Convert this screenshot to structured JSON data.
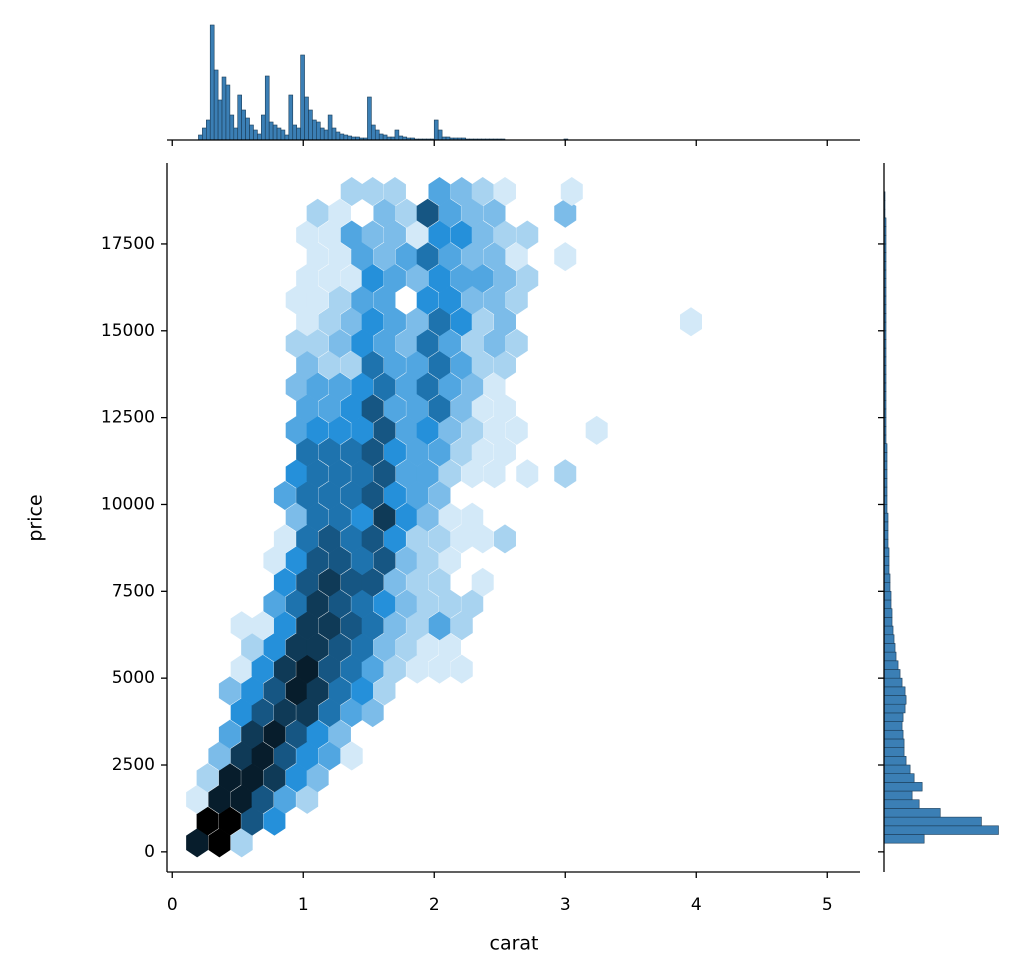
{
  "chart_data": [
    {
      "type": "hexbin",
      "x_label": "carat",
      "y_label": "price",
      "color": "#1f77b4",
      "xlim": [
        -0.04,
        5.25
      ],
      "ylim": [
        -580,
        19830
      ],
      "xticks": [
        0,
        1,
        2,
        3,
        4,
        5
      ],
      "yticks": [
        0,
        2500,
        5000,
        7500,
        10000,
        12500,
        15000,
        17500
      ],
      "x": [
        0.19,
        0.36,
        0.53,
        0.27,
        0.44,
        0.61,
        0.78,
        0.19,
        0.36,
        0.53,
        0.69,
        0.86,
        1.03,
        0.27,
        0.44,
        0.61,
        0.78,
        0.95,
        1.11,
        0.36,
        0.53,
        0.69,
        0.86,
        1.03,
        1.2,
        1.37,
        0.44,
        0.61,
        0.78,
        0.95,
        1.11,
        1.28,
        0.53,
        0.69,
        0.86,
        1.03,
        1.2,
        1.37,
        1.53,
        0.44,
        0.61,
        0.78,
        0.95,
        1.11,
        1.28,
        1.45,
        1.62,
        0.53,
        0.69,
        0.86,
        1.03,
        1.2,
        1.37,
        1.53,
        1.7,
        1.87,
        2.04,
        2.21,
        0.61,
        0.78,
        0.95,
        1.11,
        1.28,
        1.45,
        1.62,
        1.79,
        1.95,
        2.12,
        0.53,
        0.69,
        0.86,
        1.03,
        1.2,
        1.37,
        1.53,
        1.7,
        1.87,
        2.04,
        2.21,
        0.78,
        0.95,
        1.11,
        1.28,
        1.45,
        1.62,
        1.79,
        1.95,
        2.12,
        2.29,
        0.86,
        1.03,
        1.2,
        1.37,
        1.53,
        1.7,
        1.87,
        2.04,
        2.37,
        0.78,
        0.95,
        1.11,
        1.28,
        1.45,
        1.62,
        1.79,
        1.95,
        2.12,
        0.86,
        1.03,
        1.2,
        1.37,
        1.53,
        1.7,
        1.87,
        2.04,
        2.21,
        2.37,
        2.54,
        0.95,
        1.11,
        1.28,
        1.45,
        1.62,
        1.79,
        1.95,
        2.12,
        2.29,
        0.86,
        1.03,
        1.2,
        1.37,
        1.53,
        1.7,
        1.87,
        2.04,
        0.95,
        1.11,
        1.28,
        1.45,
        1.62,
        1.79,
        1.95,
        2.12,
        2.29,
        2.46,
        2.71,
        3.0,
        1.03,
        1.2,
        1.37,
        1.53,
        1.7,
        1.87,
        2.04,
        2.21,
        2.37,
        2.54,
        0.95,
        1.11,
        1.28,
        1.45,
        1.62,
        1.79,
        1.95,
        2.12,
        2.29,
        2.46,
        2.63,
        3.24,
        1.03,
        1.2,
        1.37,
        1.53,
        1.7,
        1.87,
        2.04,
        2.21,
        2.37,
        2.54,
        0.95,
        1.11,
        1.28,
        1.45,
        1.62,
        1.79,
        1.95,
        2.12,
        2.29,
        2.46,
        1.03,
        1.2,
        1.37,
        1.53,
        1.7,
        1.87,
        2.04,
        2.21,
        2.37,
        2.54,
        0.95,
        1.11,
        1.28,
        1.45,
        1.62,
        1.79,
        1.95,
        2.12,
        2.29,
        2.46,
        2.63,
        1.03,
        1.2,
        1.37,
        1.53,
        1.7,
        1.87,
        2.04,
        2.21,
        2.37,
        2.54,
        3.96,
        0.95,
        1.11,
        1.28,
        1.45,
        1.62,
        1.95,
        2.12,
        2.29,
        2.46,
        2.63,
        1.03,
        1.2,
        1.37,
        1.53,
        1.7,
        1.87,
        2.04,
        2.21,
        2.37,
        2.54,
        2.71,
        1.11,
        1.28,
        1.45,
        1.62,
        1.79,
        1.95,
        2.12,
        2.29,
        2.46,
        2.63,
        3.0,
        1.03,
        1.2,
        1.37,
        1.53,
        1.7,
        1.87,
        2.04,
        2.21,
        2.37,
        2.54,
        2.71,
        1.11,
        1.28,
        1.62,
        1.79,
        1.95,
        2.12,
        2.29,
        2.46,
        3.0,
        1.37,
        1.53,
        1.7,
        2.04,
        2.21,
        2.37,
        2.54,
        3.05
      ],
      "y": [
        259,
        259,
        259,
        884,
        884,
        884,
        884,
        1509,
        1509,
        1509,
        1509,
        1509,
        1509,
        2134,
        2134,
        2134,
        2134,
        2134,
        2134,
        2759,
        2759,
        2759,
        2759,
        2759,
        2759,
        2759,
        3384,
        3384,
        3384,
        3384,
        3384,
        3384,
        4009,
        4009,
        4009,
        4009,
        4009,
        4009,
        4009,
        4634,
        4634,
        4634,
        4634,
        4634,
        4634,
        4634,
        4634,
        5259,
        5259,
        5259,
        5259,
        5259,
        5259,
        5259,
        5259,
        5259,
        5259,
        5259,
        5884,
        5884,
        5884,
        5884,
        5884,
        5884,
        5884,
        5884,
        5884,
        5884,
        6509,
        6509,
        6509,
        6509,
        6509,
        6509,
        6509,
        6509,
        6509,
        6509,
        6509,
        7134,
        7134,
        7134,
        7134,
        7134,
        7134,
        7134,
        7134,
        7134,
        7134,
        7759,
        7759,
        7759,
        7759,
        7759,
        7759,
        7759,
        7759,
        7759,
        8384,
        8384,
        8384,
        8384,
        8384,
        8384,
        8384,
        8384,
        8384,
        9009,
        9009,
        9009,
        9009,
        9009,
        9009,
        9009,
        9009,
        9009,
        9009,
        9009,
        9634,
        9634,
        9634,
        9634,
        9634,
        9634,
        9634,
        9634,
        9634,
        10259,
        10259,
        10259,
        10259,
        10259,
        10259,
        10259,
        10259,
        10884,
        10884,
        10884,
        10884,
        10884,
        10884,
        10884,
        10884,
        10884,
        10884,
        10884,
        10884,
        11509,
        11509,
        11509,
        11509,
        11509,
        11509,
        11509,
        11509,
        11509,
        11509,
        12134,
        12134,
        12134,
        12134,
        12134,
        12134,
        12134,
        12134,
        12134,
        12134,
        12134,
        12134,
        12759,
        12759,
        12759,
        12759,
        12759,
        12759,
        12759,
        12759,
        12759,
        12759,
        13384,
        13384,
        13384,
        13384,
        13384,
        13384,
        13384,
        13384,
        13384,
        13384,
        14009,
        14009,
        14009,
        14009,
        14009,
        14009,
        14009,
        14009,
        14009,
        14009,
        14634,
        14634,
        14634,
        14634,
        14634,
        14634,
        14634,
        14634,
        14634,
        14634,
        14634,
        15259,
        15259,
        15259,
        15259,
        15259,
        15259,
        15259,
        15259,
        15259,
        15259,
        15259,
        15884,
        15884,
        15884,
        15884,
        15884,
        15884,
        15884,
        15884,
        15884,
        15884,
        16509,
        16509,
        16509,
        16509,
        16509,
        16509,
        16509,
        16509,
        16509,
        16509,
        16509,
        17134,
        17134,
        17134,
        17134,
        17134,
        17134,
        17134,
        17134,
        17134,
        17134,
        17134,
        17759,
        17759,
        17759,
        17759,
        17759,
        17759,
        17759,
        17759,
        17759,
        17759,
        17759,
        18384,
        18384,
        18384,
        18384,
        18384,
        18384,
        18384,
        18384,
        18384,
        19009,
        19009,
        19009,
        19009,
        19009,
        19009,
        19009,
        19009
      ],
      "values": [
        2700,
        3000,
        600,
        3000,
        3000,
        2100,
        1500,
        300,
        2700,
        2700,
        2100,
        1200,
        600,
        600,
        2700,
        2700,
        2400,
        1500,
        900,
        900,
        2400,
        2700,
        2100,
        1500,
        1200,
        300,
        1200,
        2400,
        2700,
        2100,
        1500,
        900,
        1500,
        2100,
        2400,
        2400,
        1800,
        1200,
        900,
        900,
        1500,
        2100,
        2700,
        2400,
        1800,
        1500,
        600,
        300,
        1500,
        2400,
        2700,
        2100,
        1800,
        1200,
        600,
        300,
        300,
        300,
        600,
        1500,
        2400,
        2400,
        2100,
        1800,
        900,
        600,
        300,
        300,
        300,
        300,
        1500,
        2400,
        2400,
        2100,
        1800,
        900,
        600,
        1200,
        600,
        1200,
        1800,
        2400,
        2100,
        1800,
        1500,
        900,
        600,
        600,
        600,
        1500,
        2100,
        2400,
        2100,
        2100,
        900,
        600,
        600,
        300,
        300,
        1500,
        2100,
        2100,
        1800,
        2100,
        900,
        600,
        300,
        300,
        1800,
        2100,
        1800,
        2100,
        1500,
        600,
        600,
        300,
        300,
        600,
        900,
        1800,
        1800,
        1500,
        2400,
        1500,
        900,
        300,
        300,
        1200,
        1800,
        1800,
        1800,
        2100,
        1500,
        1200,
        900,
        1500,
        1800,
        1800,
        1800,
        2100,
        1200,
        1200,
        600,
        300,
        300,
        300,
        600,
        1800,
        1800,
        1800,
        2100,
        1500,
        1200,
        1200,
        600,
        300,
        300,
        1200,
        1500,
        1500,
        1500,
        2100,
        1200,
        1500,
        900,
        600,
        300,
        300,
        300,
        1200,
        1200,
        1500,
        2100,
        1200,
        1200,
        1800,
        900,
        300,
        300,
        900,
        1200,
        1200,
        1500,
        1800,
        1200,
        1800,
        1200,
        900,
        300,
        900,
        600,
        600,
        1800,
        1200,
        1200,
        1800,
        1200,
        600,
        600,
        600,
        600,
        900,
        1500,
        1200,
        900,
        1800,
        1200,
        600,
        900,
        600,
        300,
        600,
        900,
        1500,
        1200,
        900,
        1800,
        1500,
        600,
        900,
        300,
        300,
        300,
        600,
        1200,
        1200,
        1500,
        1500,
        900,
        900,
        600,
        300,
        300,
        300,
        1500,
        1200,
        900,
        1500,
        1200,
        1200,
        900,
        600,
        300,
        300,
        1200,
        900,
        1200,
        1800,
        1200,
        900,
        900,
        300,
        300,
        300,
        300,
        1200,
        900,
        900,
        300,
        1500,
        1500,
        900,
        600,
        600,
        600,
        300,
        900,
        600,
        2100,
        1200,
        900,
        900,
        900,
        600,
        600,
        600,
        1200,
        900,
        600,
        300,
        300
      ]
    },
    {
      "type": "histogram",
      "color": "#3b7fb5",
      "ylim": [
        0,
        2640
      ],
      "bins": [
        0.2,
        0.23,
        0.26,
        0.29,
        0.32,
        0.35,
        0.38,
        0.41,
        0.44,
        0.47,
        0.5,
        0.53,
        0.56,
        0.59,
        0.62,
        0.65,
        0.68,
        0.71,
        0.74,
        0.77,
        0.8,
        0.83,
        0.86,
        0.89,
        0.92,
        0.95,
        0.98,
        1.01,
        1.04,
        1.07,
        1.1,
        1.13,
        1.16,
        1.19,
        1.22,
        1.25,
        1.28,
        1.31,
        1.34,
        1.37,
        1.4,
        1.43,
        1.46,
        1.49,
        1.52,
        1.55,
        1.58,
        1.61,
        1.64,
        1.67,
        1.7,
        1.73,
        1.76,
        1.79,
        1.82,
        1.85,
        1.88,
        1.91,
        1.94,
        1.97,
        2.0,
        2.03,
        2.06,
        2.09,
        2.12,
        2.15,
        2.18,
        2.21,
        2.24,
        2.27,
        2.3,
        2.33,
        2.36,
        2.39,
        2.42,
        2.45,
        2.48,
        2.51,
        2.54,
        2.57,
        2.6,
        2.63,
        2.66,
        2.69,
        2.72,
        2.75,
        2.78,
        2.81,
        2.84,
        2.87,
        2.9,
        2.93,
        2.96,
        2.99,
        3.02,
        3.05,
        3.08,
        3.11,
        3.14,
        3.17,
        3.2
      ],
      "values": [
        110,
        264,
        440,
        2530,
        1540,
        880,
        1386,
        1210,
        550,
        264,
        990,
        660,
        484,
        330,
        220,
        132,
        550,
        1408,
        396,
        330,
        264,
        220,
        110,
        990,
        330,
        264,
        1870,
        946,
        660,
        440,
        396,
        264,
        220,
        550,
        264,
        176,
        132,
        110,
        88,
        66,
        66,
        44,
        44,
        946,
        330,
        220,
        132,
        110,
        66,
        66,
        220,
        88,
        66,
        44,
        44,
        22,
        22,
        22,
        22,
        22,
        440,
        220,
        66,
        66,
        44,
        44,
        44,
        44,
        22,
        22,
        22,
        22,
        22,
        22,
        22,
        22,
        22,
        22,
        0,
        0,
        0,
        0,
        0,
        0,
        0,
        0,
        0,
        0,
        0,
        0,
        0,
        0,
        0,
        22,
        0,
        0,
        0,
        0,
        0,
        0
      ]
    },
    {
      "type": "histogram",
      "orientation": "horizontal",
      "color": "#3b7fb5",
      "xlim": [
        0,
        4700
      ],
      "bins": [
        250,
        500,
        750,
        1000,
        1250,
        1500,
        1750,
        2000,
        2250,
        2500,
        2750,
        3000,
        3250,
        3500,
        3750,
        4000,
        4250,
        4500,
        4750,
        5000,
        5250,
        5500,
        5750,
        6000,
        6250,
        6500,
        6750,
        7000,
        7250,
        7500,
        7750,
        8000,
        8250,
        8500,
        8750,
        9000,
        9250,
        9500,
        9750,
        10000,
        10250,
        10500,
        10750,
        11000,
        11250,
        11500,
        11750,
        12000,
        12250,
        12500,
        12750,
        13000,
        13250,
        13500,
        13750,
        14000,
        14250,
        14500,
        14750,
        15000,
        15250,
        15500,
        15750,
        16000,
        16250,
        16500,
        16750,
        17000,
        17250,
        17500,
        17750,
        18000,
        18250,
        18500,
        18750,
        19000
      ],
      "values": [
        1600,
        4560,
        3880,
        2240,
        1400,
        1120,
        1520,
        1200,
        1040,
        880,
        800,
        800,
        760,
        720,
        760,
        840,
        880,
        840,
        720,
        640,
        560,
        480,
        440,
        400,
        360,
        320,
        320,
        280,
        280,
        240,
        240,
        200,
        200,
        200,
        160,
        160,
        160,
        160,
        120,
        120,
        120,
        120,
        120,
        120,
        120,
        120,
        80,
        80,
        80,
        80,
        80,
        80,
        80,
        80,
        80,
        80,
        80,
        80,
        80,
        80,
        80,
        80,
        80,
        80,
        80,
        80,
        80,
        80,
        80,
        80,
        80,
        80,
        40,
        40,
        40
      ]
    }
  ]
}
